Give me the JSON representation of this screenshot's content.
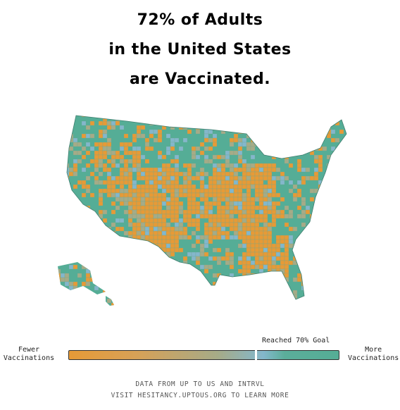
{
  "title": {
    "line1": "72% of Adults",
    "line2": "in the United States",
    "line3": "are Vaccinated."
  },
  "colors": {
    "fewer": "#e69a37",
    "mid": "#a6ab87",
    "blue": "#84b7cc",
    "more": "#55ad96",
    "border": "#3f7f6f"
  },
  "legend": {
    "left_line1": "Fewer",
    "left_line2": "Vaccinations",
    "right_line1": "More",
    "right_line2": "Vaccinations",
    "goal_label": "Reached 70% Goal",
    "goal_value": 70
  },
  "footer": {
    "line1": "DATA FROM UP TO US AND INTRVL",
    "line2": "VISIT HESITANCY.UPTOUS.ORG TO LEARN MORE"
  }
}
